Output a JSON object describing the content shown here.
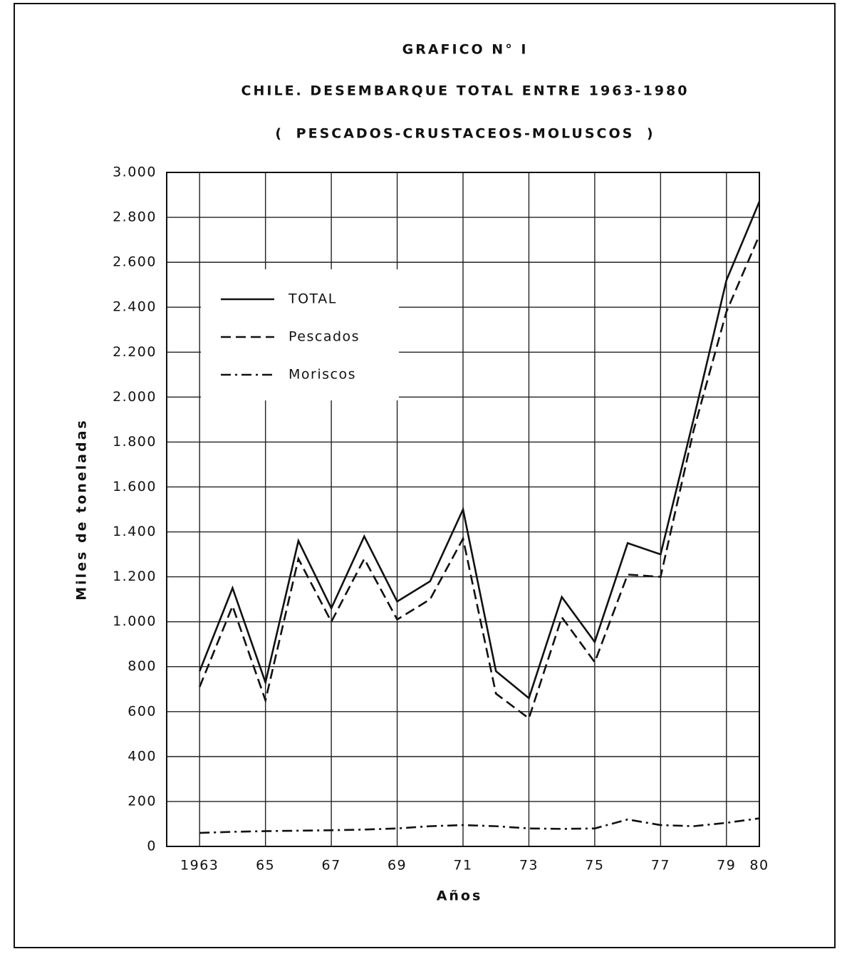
{
  "chart_data": {
    "type": "line",
    "title": "GRAFICO N° I",
    "subtitle": "CHILE. DESEMBARQUE TOTAL ENTRE 1963-1980",
    "subtitle2": "( PESCADOS-CRUSTACEOS-MOLUSCOS )",
    "x_label": "Años",
    "y_label": "Miles de toneladas",
    "x": [
      1963,
      1964,
      1965,
      1966,
      1967,
      1968,
      1969,
      1970,
      1971,
      1972,
      1973,
      1974,
      1975,
      1976,
      1977,
      1978,
      1979,
      1980
    ],
    "series": [
      {
        "name": "TOTAL",
        "color": "#111111",
        "style": "solid",
        "values": [
          780,
          1150,
          730,
          1360,
          1060,
          1380,
          1090,
          1180,
          1500,
          780,
          660,
          1110,
          910,
          1350,
          1300,
          1900,
          2520,
          2870
        ]
      },
      {
        "name": "Pescados",
        "color": "#111111",
        "style": "dashed",
        "values": [
          710,
          1070,
          650,
          1280,
          1000,
          1280,
          1010,
          1100,
          1370,
          680,
          570,
          1020,
          820,
          1210,
          1200,
          1850,
          2380,
          2720
        ]
      },
      {
        "name": "Moriscos",
        "color": "#111111",
        "style": "dashdot",
        "values": [
          60,
          65,
          68,
          70,
          72,
          75,
          80,
          90,
          95,
          90,
          80,
          78,
          80,
          120,
          95,
          90,
          105,
          125
        ]
      }
    ],
    "xlim": [
      1962,
      1980
    ],
    "xticks": [
      1963,
      {
        "value": 1965,
        "label": "65"
      },
      {
        "value": 1967,
        "label": "67"
      },
      {
        "value": 1969,
        "label": "69"
      },
      {
        "value": 1971,
        "label": "71"
      },
      {
        "value": 1973,
        "label": "73"
      },
      {
        "value": 1975,
        "label": "75"
      },
      {
        "value": 1977,
        "label": "77"
      },
      {
        "value": 1979,
        "label": "79"
      },
      {
        "value": 1980,
        "label": "80"
      }
    ],
    "ylim": [
      0,
      3000
    ],
    "yticks": [
      0,
      200,
      400,
      600,
      800,
      {
        "value": 1000,
        "label": "1.000"
      },
      {
        "value": 1200,
        "label": "1.200"
      },
      {
        "value": 1400,
        "label": "1.400"
      },
      {
        "value": 1600,
        "label": "1.600"
      },
      {
        "value": 1800,
        "label": "1.800"
      },
      {
        "value": 2000,
        "label": "2.000"
      },
      {
        "value": 2200,
        "label": "2.200"
      },
      {
        "value": 2400,
        "label": "2.400"
      },
      {
        "value": 2600,
        "label": "2.600"
      },
      {
        "value": 2800,
        "label": "2.800"
      },
      {
        "value": 3000,
        "label": "3.000"
      }
    ],
    "grid": true,
    "legend": "upper left"
  }
}
